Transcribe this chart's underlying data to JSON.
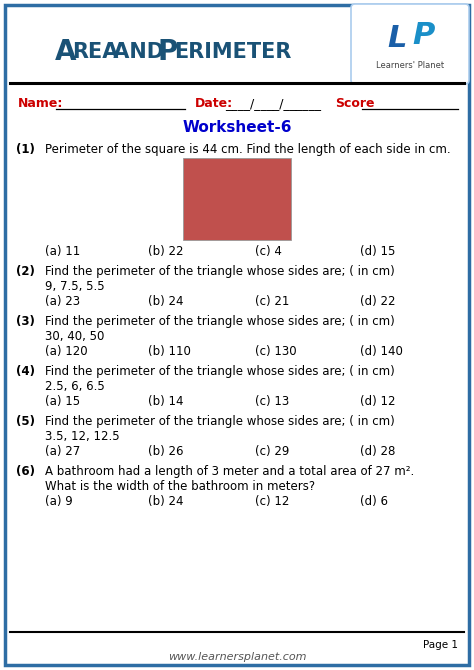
{
  "title_part1": "Area",
  "title_and": " and ",
  "title_part2": "Perimeter",
  "title_color": "#1a5276",
  "border_color": "#2e6da4",
  "worksheet_label": "Worksheet-6",
  "header_color": "#cc0000",
  "worksheet_color": "#0000cc",
  "square_color": "#c0504d",
  "questions": [
    {
      "num": "(1)",
      "text": "Perimeter of the square is 44 cm. Find the length of each side in cm.",
      "sub_text": "",
      "options": [
        "(a) 11",
        "(b) 22",
        "(c) 4",
        "(d) 15"
      ],
      "has_square": true
    },
    {
      "num": "(2)",
      "text": "Find the perimeter of the triangle whose sides are; ( in cm)",
      "sub_text": "9, 7.5, 5.5",
      "options": [
        "(a) 23",
        "(b) 24",
        "(c) 21",
        "(d) 22"
      ],
      "has_square": false
    },
    {
      "num": "(3)",
      "text": "Find the perimeter of the triangle whose sides are; ( in cm)",
      "sub_text": "30, 40, 50",
      "options": [
        "(a) 120",
        "(b) 110",
        "(c) 130",
        "(d) 140"
      ],
      "has_square": false
    },
    {
      "num": "(4)",
      "text": "Find the perimeter of the triangle whose sides are; ( in cm)",
      "sub_text": "2.5, 6, 6.5",
      "options": [
        "(a) 15",
        "(b) 14",
        "(c) 13",
        "(d) 12"
      ],
      "has_square": false
    },
    {
      "num": "(5)",
      "text": "Find the perimeter of the triangle whose sides are; ( in cm)",
      "sub_text": "3.5, 12, 12.5",
      "options": [
        "(a) 27",
        "(b) 26",
        "(c) 29",
        "(d) 28"
      ],
      "has_square": false
    },
    {
      "num": "(6)",
      "text": "A bathroom had a length of 3 meter and a total area of 27 m².",
      "sub_text": "What is the width of the bathroom in meters?",
      "options": [
        "(a) 9",
        "(b) 24",
        "(c) 12",
        "(d) 6"
      ],
      "has_square": false
    }
  ],
  "footer_text": "www.learnersplanet.com",
  "page_label": "Page 1",
  "bg_color": "#ffffff",
  "outer_border_color": "#2e6da4"
}
